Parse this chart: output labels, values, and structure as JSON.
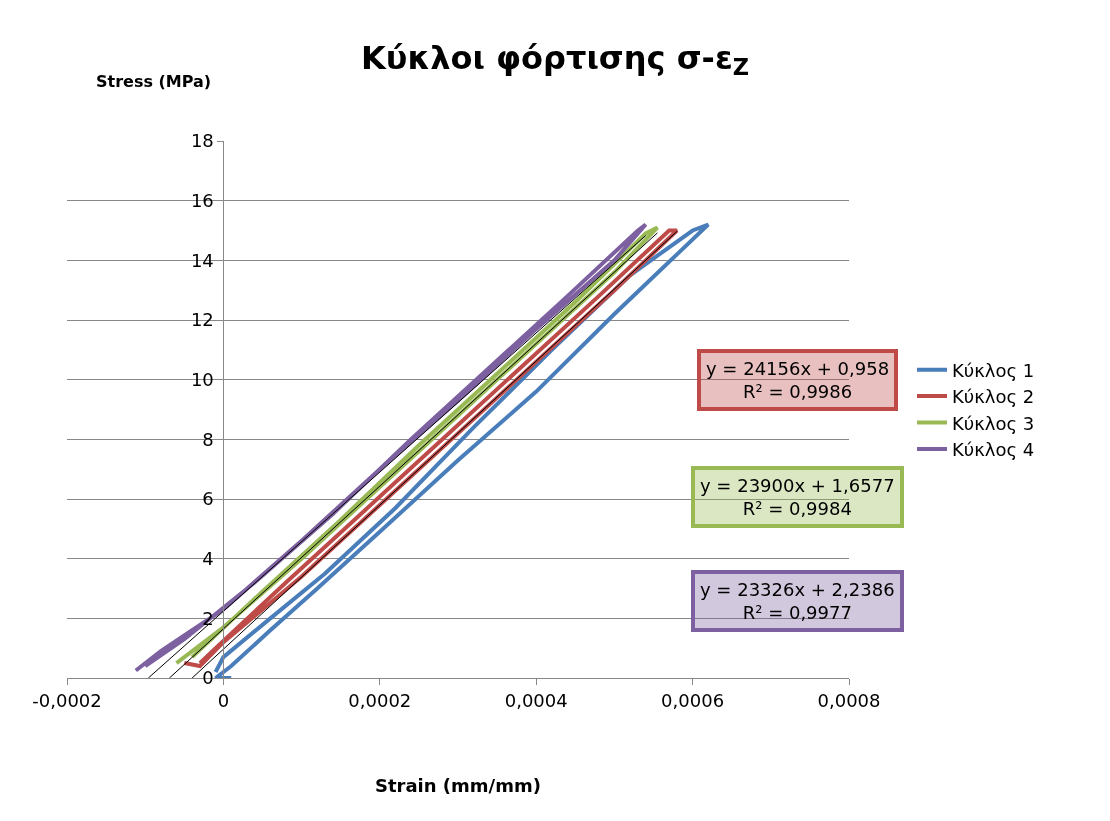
{
  "chart_data": {
    "type": "line",
    "title": "Κύκλοι φόρτισης σ-ε$_{Z}$",
    "xlabel": "Strain (mm/mm)",
    "ylabel": "Stress (MPa)",
    "xlim": [
      -0.0002,
      0.0008
    ],
    "ylim": [
      0,
      18
    ],
    "xticks": [
      {
        "value": -0.0002,
        "label": "-0,0002"
      },
      0,
      {
        "value": 0.0002,
        "label": "0,0002"
      },
      {
        "value": 0.0004,
        "label": "0,0004"
      },
      {
        "value": 0.0006,
        "label": "0,0006"
      },
      {
        "value": 0.0008,
        "label": "0,0008"
      }
    ],
    "yticks": [
      0,
      2,
      4,
      6,
      8,
      10,
      12,
      14,
      16,
      18
    ],
    "grid": "y",
    "legend": "right",
    "marker": "none",
    "line_style": "solid",
    "series": [
      {
        "name": "Κύκλος 1",
        "color": "#4a7ebb",
        "x": [
          1e-05,
          -1e-05,
          1e-05,
          6e-05,
          0.00012,
          0.0002,
          0.0003,
          0.0004,
          0.0005,
          0.00058,
          0.00062,
          0.0006,
          0.00052,
          0.00042,
          0.00032,
          0.00022,
          0.00013,
          6e-05,
          0.0,
          -1e-05
        ],
        "values": [
          0.0,
          0.0,
          0.4,
          1.6,
          3.0,
          4.9,
          7.3,
          9.6,
          12.2,
          14.2,
          15.2,
          15.0,
          13.5,
          11.0,
          8.4,
          5.7,
          3.5,
          2.0,
          0.7,
          0.2
        ]
      },
      {
        "name": "Κύκλος 2",
        "color": "#be4b48",
        "x": [
          -5e-05,
          -3e-05,
          0.0,
          0.0001,
          0.0002,
          0.0003,
          0.0004,
          0.0005,
          0.00058,
          0.00057,
          0.00048,
          0.00038,
          0.00028,
          0.00018,
          8e-05,
          -1e-05,
          -3e-05
        ],
        "values": [
          0.5,
          0.4,
          1.2,
          3.4,
          5.8,
          8.2,
          10.6,
          13.0,
          15.0,
          15.0,
          12.8,
          10.4,
          8.0,
          5.6,
          3.2,
          1.0,
          0.5
        ]
      },
      {
        "name": "Κύκλος 3",
        "color": "#98b954",
        "x": [
          -6e-05,
          0.0,
          0.0001,
          0.0002,
          0.0003,
          0.0004,
          0.0005,
          0.000555,
          0.00054,
          0.00045,
          0.00035,
          0.00025,
          0.00015,
          5e-05,
          -4e-05
        ],
        "values": [
          0.5,
          1.7,
          4.0,
          6.4,
          8.8,
          11.2,
          13.6,
          15.1,
          14.9,
          12.6,
          10.2,
          7.8,
          5.3,
          2.9,
          0.7
        ]
      },
      {
        "name": "Κύκλος 4",
        "color": "#7d60a0",
        "x": [
          -0.000112,
          -8e-05,
          -4e-05,
          0.0,
          0.0001,
          0.0002,
          0.0003,
          0.0004,
          0.0005,
          0.00054,
          0.00053,
          0.00044,
          0.00034,
          0.00024,
          0.00014,
          4e-05,
          -5e-05,
          -0.0001
        ],
        "values": [
          0.25,
          0.9,
          1.6,
          2.3,
          4.6,
          7.0,
          9.3,
          11.7,
          14.0,
          15.2,
          15.0,
          12.8,
          10.4,
          8.0,
          5.5,
          3.2,
          1.3,
          0.4
        ]
      },
      {
        "type": "line",
        "color": "#000000",
        "x": [
          -4e-05,
          0.00058
        ],
        "values": [
          0.0,
          14.97
        ]
      },
      {
        "type": "line",
        "color": "#000000",
        "x": [
          -6.9e-05,
          0.000555
        ],
        "values": [
          0.0,
          14.92
        ]
      },
      {
        "type": "line",
        "color": "#000000",
        "x": [
          -9.6e-05,
          0.00054
        ],
        "values": [
          0.0,
          14.83
        ]
      }
    ],
    "annotations": [
      "y = 24156x + 0,958\nR² = 0,9986",
      "y = 23900x + 1,6577\nR² = 0,9984",
      "y = 23326x + 2,2386\nR² = 0,9977"
    ]
  }
}
